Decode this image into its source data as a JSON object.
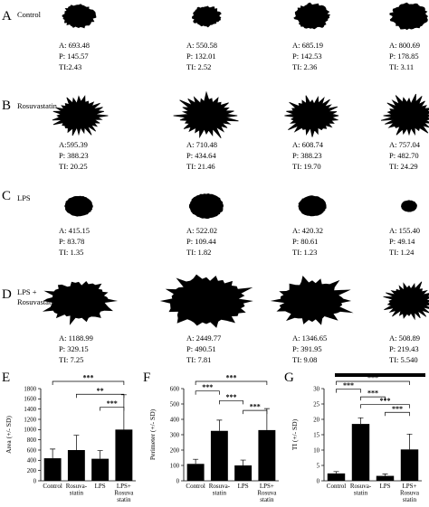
{
  "panels": {
    "A": "A",
    "B": "B",
    "C": "C",
    "D": "D",
    "E": "E",
    "F": "F",
    "G": "G"
  },
  "rows": [
    {
      "name": "Control",
      "name_lines": [
        "Control"
      ],
      "cells": [
        {
          "A": "A: 693.48",
          "P": "P: 145.57",
          "TI": "TI:2.43",
          "shape": "smooth"
        },
        {
          "A": "A: 550.58",
          "P": "P: 132.01",
          "TI": "TI: 2.52",
          "shape": "smooth"
        },
        {
          "A": "A: 685.19",
          "P": "P: 142.53",
          "TI": "TI: 2.36",
          "shape": "smooth"
        },
        {
          "A": "A: 800.69",
          "P": "P: 178.85",
          "TI": "TI: 3.11",
          "shape": "smooth"
        }
      ]
    },
    {
      "name": "Rosuvastatin",
      "name_lines": [
        "Rosuvastatin"
      ],
      "cells": [
        {
          "A": "A:595.39",
          "P": "P: 388.23",
          "TI: ": "",
          "TI": "TI: 20.25",
          "shape": "spiky"
        },
        {
          "A": "A: 710.48",
          "P": "P: 434.64",
          "TI": "TI: 21.46",
          "shape": "spiky"
        },
        {
          "A": "A: 608.74",
          "P": "P: 388.23",
          "TI": "TI: 19.70",
          "shape": "spiky"
        },
        {
          "A": "A: 757.04",
          "P": "P: 482.70",
          "TI": "TI: 24.29",
          "shape": "spiky"
        }
      ]
    },
    {
      "name": "LPS",
      "name_lines": [
        "LPS"
      ],
      "cells": [
        {
          "A": "A: 415.15",
          "P": "P: 83.78",
          "TI": "TI: 1.35",
          "shape": "round"
        },
        {
          "A": "A: 522.02",
          "P": "P: 109.44",
          "TI": "TI: 1.82",
          "shape": "round"
        },
        {
          "A": "A: 420.32",
          "P": "P: 80.61",
          "TI": "TI: 1.23",
          "shape": "round"
        },
        {
          "A": "A: 155.40",
          "P": "P: 49.14",
          "TI": "TI: 1.24",
          "shape": "round"
        }
      ]
    },
    {
      "name": "LPS + Rosuvastatin",
      "name_lines": [
        "LPS +",
        "Rosuvastatin"
      ],
      "cells": [
        {
          "A": "A: 1188.99",
          "P": "P: 329.15",
          "TI": "TI: 7.25",
          "shape": "large"
        },
        {
          "A": "A: 2449.77",
          "P": "P: 490.51",
          "TI": "TI: 7.81",
          "shape": "large"
        },
        {
          "A": "A: 1346.65",
          "P": "P: 391.95",
          "TI": "TI: 9.08",
          "shape": "large"
        },
        {
          "A": "A: 508.89",
          "P": "P: 219.43",
          "TI": "TI: 5.540",
          "shape": "spiky"
        }
      ]
    }
  ],
  "chart_data": [
    {
      "panel": "E",
      "type": "bar",
      "ylabel": "Area (+/- SD)",
      "ylim": [
        0,
        1800
      ],
      "yticks": [
        0,
        200,
        400,
        600,
        800,
        1000,
        1200,
        1400,
        1600,
        1800
      ],
      "categories": [
        "Control",
        "Rosuva-statin",
        "LPS",
        "LPS+ Rosuva statin"
      ],
      "category_lines": [
        [
          "Control"
        ],
        [
          "Rosuva-",
          "statin"
        ],
        [
          "LPS"
        ],
        [
          "LPS+",
          "Rosuva",
          "statin"
        ]
      ],
      "values": [
        440,
        600,
        430,
        1000
      ],
      "errors": [
        180,
        290,
        160,
        680
      ],
      "significance": [
        {
          "from": 0,
          "to": 3,
          "label": "***"
        },
        {
          "from": 1,
          "to": 3,
          "label": "**"
        },
        {
          "from": 2,
          "to": 3,
          "label": "***"
        }
      ]
    },
    {
      "panel": "F",
      "type": "bar",
      "ylabel": "Perimeter (+/- SD)",
      "ylim": [
        0,
        600
      ],
      "yticks": [
        0,
        100,
        200,
        300,
        400,
        500,
        600
      ],
      "categories": [
        "Control",
        "Rosuva-statin",
        "LPS",
        "LPS+ Rosuva statin"
      ],
      "category_lines": [
        [
          "Control"
        ],
        [
          "Rosuva-",
          "statin"
        ],
        [
          "LPS"
        ],
        [
          "LPS+",
          "Rosuva",
          "statin"
        ]
      ],
      "values": [
        110,
        325,
        100,
        330
      ],
      "errors": [
        30,
        70,
        35,
        140
      ],
      "significance": [
        {
          "from": 0,
          "to": 3,
          "label": "***"
        },
        {
          "from": 0,
          "to": 1,
          "label": "***"
        },
        {
          "from": 1,
          "to": 2,
          "label": "***"
        },
        {
          "from": 2,
          "to": 3,
          "label": "***"
        }
      ]
    },
    {
      "panel": "G",
      "type": "bar",
      "ylabel": "TI (+/- SD)",
      "ylim": [
        0,
        30
      ],
      "yticks": [
        0,
        5,
        10,
        15,
        20,
        25,
        30
      ],
      "categories": [
        "Control",
        "Rosuva-statin",
        "LPS",
        "LPS+ Rosuva statin"
      ],
      "category_lines": [
        [
          "Control"
        ],
        [
          "Rosuva-",
          "statin"
        ],
        [
          "LPS"
        ],
        [
          "LPS+",
          "Rosuva",
          "statin"
        ]
      ],
      "values": [
        2.4,
        18.5,
        1.6,
        10.2
      ],
      "errors": [
        0.6,
        2.0,
        0.6,
        5.0
      ],
      "significance": [
        {
          "from": 0,
          "to": 3,
          "label": "***"
        },
        {
          "from": 0,
          "to": 1,
          "label": "***"
        },
        {
          "from": 1,
          "to": 2,
          "label": "***"
        },
        {
          "from": 1,
          "to": 3,
          "label": "***"
        },
        {
          "from": 2,
          "to": 3,
          "label": "***"
        }
      ]
    }
  ]
}
